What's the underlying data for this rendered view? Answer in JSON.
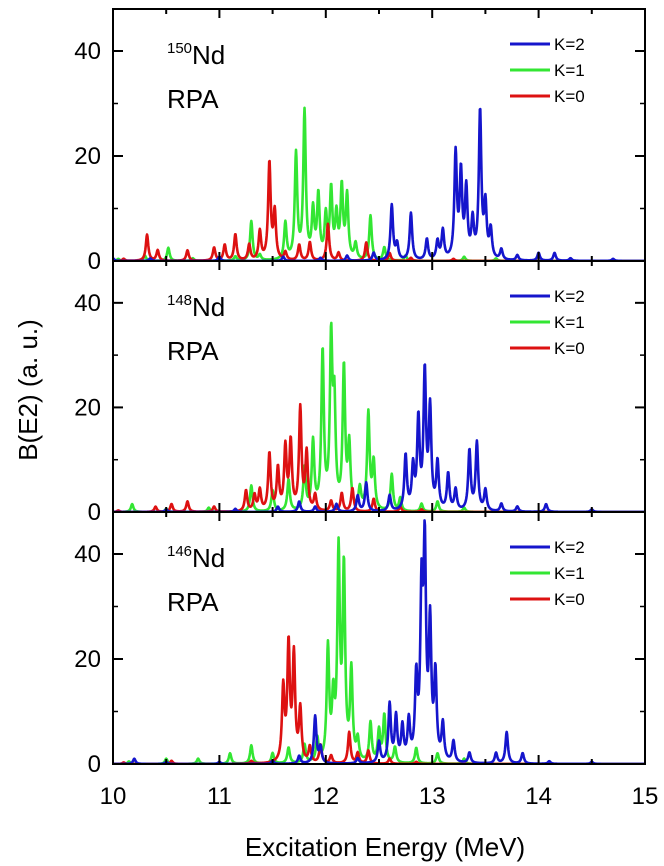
{
  "chart_data": {
    "type": "line",
    "xlabel": "Excitation Energy (MeV)",
    "ylabel": "B(E2) (a. u.)",
    "xlim": [
      10,
      15
    ],
    "xticks": [
      10,
      11,
      12,
      13,
      14,
      15
    ],
    "ylim": [
      0,
      48
    ],
    "yticks": [
      0,
      20,
      40
    ],
    "legend": "top-right",
    "colors": {
      "K=2": "#1515cc",
      "K=1": "#33e633",
      "K=0": "#dd1111"
    },
    "panels": [
      {
        "mass": "150",
        "element": "Nd",
        "method": "RPA",
        "series": [
          {
            "name": "K=2",
            "peaks": [
              [
                10.0,
                0.5
              ],
              [
                10.35,
                0.5
              ],
              [
                11.0,
                0.8
              ],
              [
                11.6,
                0.8
              ],
              [
                11.95,
                0.6
              ],
              [
                12.2,
                1.0
              ],
              [
                12.45,
                1.5
              ],
              [
                12.62,
                10.5
              ],
              [
                12.67,
                3.0
              ],
              [
                12.8,
                9.0
              ],
              [
                12.95,
                4.0
              ],
              [
                13.05,
                3.5
              ],
              [
                13.1,
                5.5
              ],
              [
                13.22,
                20.0
              ],
              [
                13.27,
                16.0
              ],
              [
                13.32,
                13.0
              ],
              [
                13.38,
                7.0
              ],
              [
                13.45,
                28.0
              ],
              [
                13.5,
                10.0
              ],
              [
                13.55,
                5.5
              ],
              [
                13.65,
                2.0
              ],
              [
                13.8,
                1.0
              ],
              [
                14.0,
                1.5
              ],
              [
                14.15,
                1.5
              ],
              [
                14.3,
                0.5
              ],
              [
                14.7,
                0.4
              ]
            ]
          },
          {
            "name": "K=1",
            "peaks": [
              [
                10.05,
                0.4
              ],
              [
                10.3,
                1.0
              ],
              [
                10.52,
                2.5
              ],
              [
                10.75,
                0.5
              ],
              [
                11.15,
                0.8
              ],
              [
                11.3,
                7.5
              ],
              [
                11.38,
                1.0
              ],
              [
                11.62,
                7.0
              ],
              [
                11.72,
                20.0
              ],
              [
                11.8,
                28.0
              ],
              [
                11.88,
                9.0
              ],
              [
                11.93,
                12.0
              ],
              [
                12.0,
                8.0
              ],
              [
                12.05,
                13.0
              ],
              [
                12.1,
                8.0
              ],
              [
                12.15,
                13.5
              ],
              [
                12.2,
                12.0
              ],
              [
                12.28,
                3.0
              ],
              [
                12.42,
                8.5
              ],
              [
                12.55,
                2.5
              ],
              [
                12.75,
                1.0
              ],
              [
                13.3,
                0.8
              ],
              [
                13.6,
                0.5
              ]
            ]
          },
          {
            "name": "K=0",
            "peaks": [
              [
                10.1,
                0.4
              ],
              [
                10.32,
                5.0
              ],
              [
                10.42,
                2.0
              ],
              [
                10.7,
                2.0
              ],
              [
                10.95,
                2.5
              ],
              [
                11.05,
                3.0
              ],
              [
                11.15,
                5.0
              ],
              [
                11.28,
                3.0
              ],
              [
                11.38,
                5.5
              ],
              [
                11.47,
                18.5
              ],
              [
                11.52,
                9.0
              ],
              [
                11.62,
                1.5
              ],
              [
                11.75,
                3.0
              ],
              [
                11.85,
                3.5
              ],
              [
                12.02,
                7.0
              ],
              [
                12.12,
                1.5
              ],
              [
                12.38,
                3.5
              ],
              [
                12.6,
                1.5
              ],
              [
                12.8,
                0.6
              ],
              [
                13.2,
                0.4
              ]
            ]
          }
        ]
      },
      {
        "mass": "148",
        "element": "Nd",
        "method": "RPA",
        "series": [
          {
            "name": "K=2",
            "peaks": [
              [
                10.5,
                0.5
              ],
              [
                11.15,
                0.6
              ],
              [
                11.55,
                1.0
              ],
              [
                11.75,
                2.0
              ],
              [
                11.9,
                1.0
              ],
              [
                12.1,
                1.5
              ],
              [
                12.3,
                3.0
              ],
              [
                12.38,
                5.5
              ],
              [
                12.6,
                3.0
              ],
              [
                12.75,
                10.5
              ],
              [
                12.82,
                8.0
              ],
              [
                12.87,
                17.0
              ],
              [
                12.93,
                26.0
              ],
              [
                12.98,
                19.0
              ],
              [
                13.05,
                9.0
              ],
              [
                13.15,
                7.0
              ],
              [
                13.22,
                4.0
              ],
              [
                13.35,
                11.5
              ],
              [
                13.42,
                13.0
              ],
              [
                13.5,
                4.0
              ],
              [
                13.65,
                1.5
              ],
              [
                13.8,
                1.0
              ],
              [
                14.07,
                1.5
              ],
              [
                14.5,
                0.5
              ]
            ]
          },
          {
            "name": "K=1",
            "peaks": [
              [
                10.18,
                1.5
              ],
              [
                10.5,
                0.6
              ],
              [
                10.9,
                0.8
              ],
              [
                11.3,
                5.0
              ],
              [
                11.5,
                4.0
              ],
              [
                11.65,
                6.0
              ],
              [
                11.8,
                8.0
              ],
              [
                11.88,
                13.0
              ],
              [
                11.97,
                30.0
              ],
              [
                12.05,
                31.5
              ],
              [
                12.08,
                19.0
              ],
              [
                12.17,
                27.0
              ],
              [
                12.22,
                12.0
              ],
              [
                12.32,
                4.0
              ],
              [
                12.4,
                18.5
              ],
              [
                12.45,
                9.0
              ],
              [
                12.62,
                7.0
              ],
              [
                12.7,
                2.5
              ],
              [
                12.9,
                1.5
              ],
              [
                13.05,
                2.0
              ],
              [
                13.3,
                0.8
              ]
            ]
          },
          {
            "name": "K=0",
            "peaks": [
              [
                10.05,
                0.3
              ],
              [
                10.4,
                1.0
              ],
              [
                10.55,
                1.5
              ],
              [
                10.7,
                2.0
              ],
              [
                10.95,
                1.0
              ],
              [
                11.25,
                4.0
              ],
              [
                11.33,
                3.0
              ],
              [
                11.38,
                4.0
              ],
              [
                11.47,
                11.0
              ],
              [
                11.55,
                8.0
              ],
              [
                11.62,
                12.0
              ],
              [
                11.67,
                13.0
              ],
              [
                11.76,
                19.5
              ],
              [
                11.82,
                11.0
              ],
              [
                11.9,
                3.0
              ],
              [
                12.05,
                2.0
              ],
              [
                12.15,
                3.5
              ],
              [
                12.25,
                4.5
              ],
              [
                12.45,
                2.5
              ],
              [
                12.7,
                1.0
              ],
              [
                12.9,
                0.5
              ]
            ]
          }
        ]
      },
      {
        "mass": "146",
        "element": "Nd",
        "method": "RPA",
        "series": [
          {
            "name": "K=2",
            "peaks": [
              [
                10.2,
                1.0
              ],
              [
                10.5,
                0.4
              ],
              [
                11.0,
                0.4
              ],
              [
                11.5,
                0.6
              ],
              [
                11.75,
                1.5
              ],
              [
                11.9,
                9.0
              ],
              [
                11.95,
                3.0
              ],
              [
                12.3,
                1.0
              ],
              [
                12.5,
                4.0
              ],
              [
                12.6,
                11.0
              ],
              [
                12.66,
                8.5
              ],
              [
                12.72,
                6.5
              ],
              [
                12.78,
                7.5
              ],
              [
                12.85,
                15.0
              ],
              [
                12.9,
                30.0
              ],
              [
                12.93,
                38.5
              ],
              [
                12.98,
                25.0
              ],
              [
                13.03,
                16.0
              ],
              [
                13.1,
                7.0
              ],
              [
                13.2,
                4.0
              ],
              [
                13.35,
                2.0
              ],
              [
                13.6,
                2.0
              ],
              [
                13.7,
                6.0
              ],
              [
                13.85,
                2.0
              ],
              [
                14.1,
                0.5
              ],
              [
                14.5,
                0.4
              ]
            ]
          },
          {
            "name": "K=1",
            "peaks": [
              [
                10.15,
                0.5
              ],
              [
                10.5,
                1.0
              ],
              [
                10.8,
                1.0
              ],
              [
                11.1,
                2.0
              ],
              [
                11.3,
                3.5
              ],
              [
                11.5,
                2.0
              ],
              [
                11.65,
                3.0
              ],
              [
                11.8,
                3.5
              ],
              [
                11.92,
                4.5
              ],
              [
                12.02,
                21.5
              ],
              [
                12.07,
                11.0
              ],
              [
                12.12,
                39.0
              ],
              [
                12.17,
                36.0
              ],
              [
                12.24,
                17.0
              ],
              [
                12.3,
                4.0
              ],
              [
                12.42,
                7.5
              ],
              [
                12.5,
                6.0
              ],
              [
                12.55,
                9.0
              ],
              [
                12.65,
                3.0
              ],
              [
                12.85,
                3.0
              ],
              [
                13.05,
                2.0
              ],
              [
                13.3,
                1.0
              ]
            ]
          },
          {
            "name": "K=0",
            "peaks": [
              [
                10.1,
                0.3
              ],
              [
                10.55,
                0.6
              ],
              [
                11.3,
                0.5
              ],
              [
                11.6,
                14.0
              ],
              [
                11.65,
                22.0
              ],
              [
                11.7,
                20.0
              ],
              [
                11.76,
                10.0
              ],
              [
                11.85,
                3.0
              ],
              [
                11.95,
                3.5
              ],
              [
                12.05,
                1.5
              ],
              [
                12.22,
                6.0
              ],
              [
                12.3,
                2.0
              ],
              [
                12.4,
                2.5
              ],
              [
                12.6,
                1.0
              ],
              [
                12.85,
                0.4
              ]
            ]
          }
        ]
      }
    ]
  }
}
